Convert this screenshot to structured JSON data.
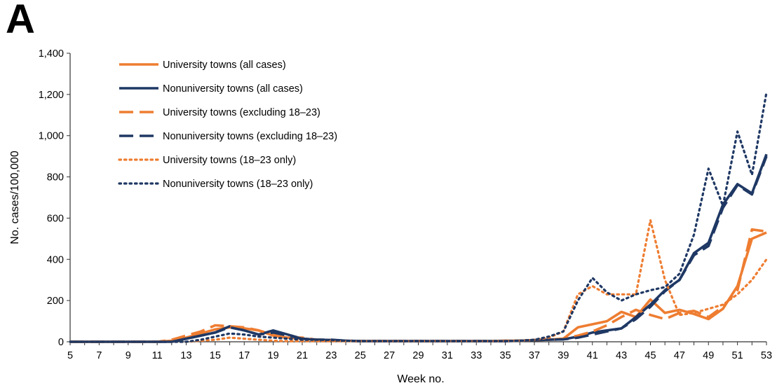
{
  "panel_label": "A",
  "chart_data": {
    "type": "line",
    "title": "",
    "xlabel": "Week no.",
    "ylabel": "No. cases/100,000",
    "xlim": [
      5,
      53
    ],
    "ylim": [
      0,
      1400
    ],
    "x_ticks": [
      5,
      7,
      9,
      11,
      13,
      15,
      17,
      19,
      21,
      23,
      25,
      27,
      29,
      31,
      33,
      35,
      37,
      39,
      41,
      43,
      45,
      47,
      49,
      51,
      53
    ],
    "y_ticks": [
      0,
      200,
      400,
      600,
      800,
      1000,
      1200,
      1400
    ],
    "y_tick_labels": [
      "0",
      "200",
      "400",
      "600",
      "800",
      "1,000",
      "1,200",
      "1,400"
    ],
    "grid": false,
    "legend_position": "top-left",
    "x": [
      5,
      6,
      7,
      8,
      9,
      10,
      11,
      12,
      13,
      14,
      15,
      16,
      17,
      18,
      19,
      20,
      21,
      22,
      23,
      24,
      25,
      26,
      27,
      28,
      29,
      30,
      31,
      32,
      33,
      34,
      35,
      36,
      37,
      38,
      39,
      40,
      41,
      42,
      43,
      44,
      45,
      46,
      47,
      48,
      49,
      50,
      51,
      52,
      53
    ],
    "series": [
      {
        "name": "University towns (all cases)",
        "color": "#ee7d31",
        "dash": "solid",
        "values": [
          0,
          0,
          0,
          0,
          0,
          0,
          0,
          5,
          20,
          40,
          60,
          70,
          65,
          55,
          30,
          20,
          15,
          10,
          8,
          5,
          3,
          3,
          3,
          3,
          3,
          3,
          3,
          3,
          3,
          3,
          5,
          5,
          8,
          10,
          15,
          70,
          85,
          100,
          145,
          120,
          205,
          140,
          155,
          135,
          110,
          160,
          270,
          500,
          530
        ]
      },
      {
        "name": "Nonuniversity towns (all cases)",
        "color": "#1f3864",
        "dash": "solid",
        "values": [
          0,
          0,
          0,
          0,
          0,
          0,
          0,
          0,
          15,
          30,
          45,
          75,
          55,
          35,
          55,
          35,
          15,
          10,
          8,
          5,
          3,
          3,
          3,
          3,
          3,
          3,
          3,
          3,
          3,
          3,
          3,
          5,
          8,
          10,
          12,
          25,
          45,
          55,
          65,
          120,
          180,
          250,
          300,
          430,
          480,
          665,
          765,
          720,
          910
        ]
      },
      {
        "name": "University towns (excluding 18–23)",
        "color": "#ee7d31",
        "dash": "long",
        "values": [
          0,
          0,
          0,
          0,
          0,
          0,
          0,
          10,
          30,
          50,
          80,
          75,
          70,
          55,
          35,
          20,
          20,
          10,
          8,
          5,
          3,
          3,
          3,
          3,
          3,
          3,
          3,
          3,
          3,
          3,
          5,
          5,
          8,
          10,
          15,
          30,
          50,
          80,
          120,
          155,
          130,
          110,
          140,
          150,
          120,
          170,
          250,
          545,
          535
        ]
      },
      {
        "name": "Nonuniversity towns (excluding 18–23)",
        "color": "#1f3864",
        "dash": "long",
        "values": [
          0,
          0,
          0,
          0,
          0,
          0,
          0,
          0,
          15,
          30,
          45,
          70,
          55,
          35,
          45,
          30,
          15,
          10,
          10,
          5,
          3,
          3,
          3,
          3,
          3,
          3,
          3,
          3,
          3,
          3,
          3,
          5,
          8,
          10,
          12,
          20,
          35,
          50,
          65,
          110,
          170,
          245,
          300,
          420,
          465,
          650,
          760,
          715,
          900
        ]
      },
      {
        "name": "University towns (18–23 only)",
        "color": "#ee7d31",
        "dash": "dotted",
        "values": [
          0,
          0,
          0,
          0,
          0,
          0,
          0,
          0,
          0,
          5,
          10,
          20,
          15,
          10,
          5,
          3,
          3,
          3,
          3,
          3,
          3,
          3,
          3,
          3,
          3,
          3,
          3,
          3,
          3,
          3,
          3,
          5,
          10,
          20,
          50,
          230,
          270,
          230,
          230,
          230,
          590,
          300,
          130,
          140,
          160,
          180,
          230,
          300,
          400
        ]
      },
      {
        "name": "Nonuniversity towns (18–23 only)",
        "color": "#1f3864",
        "dash": "dotted",
        "values": [
          0,
          0,
          0,
          0,
          0,
          0,
          0,
          0,
          0,
          10,
          25,
          40,
          35,
          25,
          20,
          15,
          10,
          10,
          8,
          5,
          3,
          3,
          3,
          3,
          3,
          3,
          3,
          3,
          3,
          3,
          3,
          5,
          10,
          25,
          50,
          200,
          310,
          240,
          200,
          230,
          250,
          265,
          330,
          520,
          840,
          660,
          1020,
          810,
          1210
        ]
      }
    ]
  }
}
